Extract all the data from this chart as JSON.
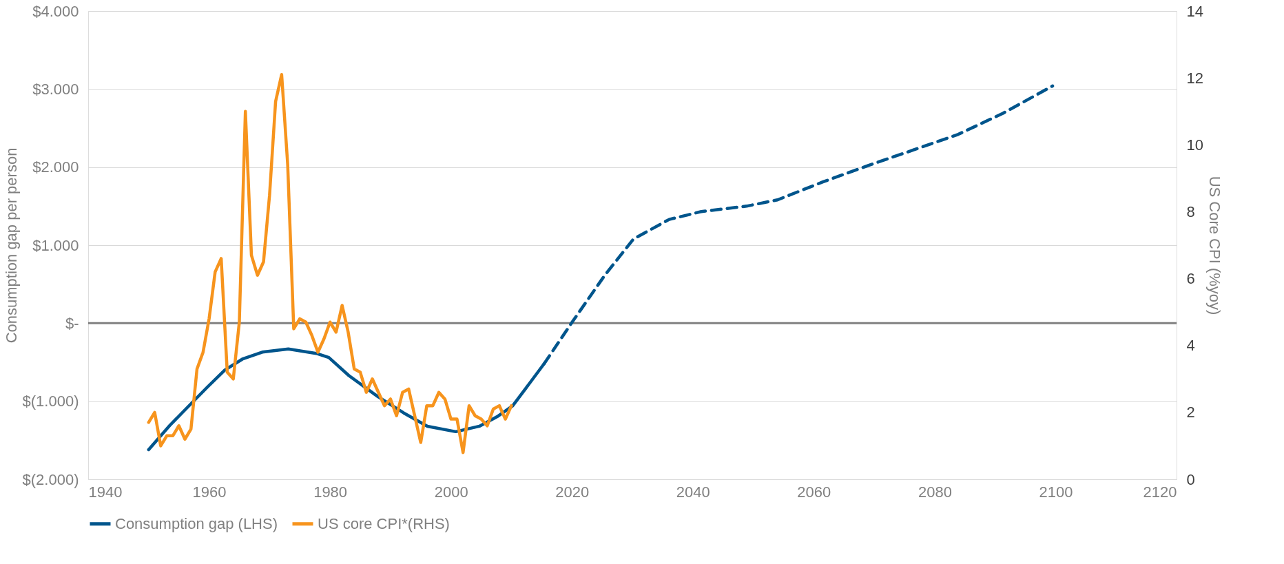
{
  "chart_data": {
    "type": "line",
    "ylabel": "Consumption gap per person",
    "y2label": "US Core CPI (%yoy)",
    "xlim": [
      1940,
      2120
    ],
    "xticks": [
      1940,
      1960,
      1980,
      2000,
      2020,
      2040,
      2060,
      2080,
      2100,
      2120
    ],
    "ylim": [
      -2000,
      4000
    ],
    "yticks": [
      {
        "value": -2000,
        "label": "$(2.000)"
      },
      {
        "value": -1000,
        "label": "$(1.000)"
      },
      {
        "value": 0,
        "label": "$-"
      },
      {
        "value": 1000,
        "label": "$1.000"
      },
      {
        "value": 2000,
        "label": "$2.000"
      },
      {
        "value": 3000,
        "label": "$3.000"
      },
      {
        "value": 4000,
        "label": "$4.000"
      }
    ],
    "y2lim": [
      0,
      14
    ],
    "y2ticks": [
      0,
      2,
      4,
      6,
      8,
      10,
      12,
      14
    ],
    "grid": "y",
    "legend": "bottom",
    "ref_lines": [
      {
        "axis": "y",
        "value": 0,
        "color": "#808080"
      }
    ],
    "series": [
      {
        "name": "Consumption gap (LHS)",
        "color": "#00558c",
        "line_style": "solid",
        "x": [
          1950,
          1953.5,
          1956.9,
          1959.7,
          1962.6,
          1965.5,
          1968.8,
          1973.1,
          1977.9,
          1979.8,
          1983.1,
          1987.9,
          1992.2,
          1996.1,
          2000.8,
          2004.7,
          2007.8,
          2010.2,
          2012.9,
          2015.4
        ],
        "values": [
          -1620,
          -1310,
          -1040,
          -820,
          -600,
          -460,
          -370,
          -330,
          -390,
          -440,
          -670,
          -940,
          -1150,
          -1320,
          -1390,
          -1320,
          -1190,
          -1060,
          -780,
          -520
        ]
      },
      {
        "color": "#00558c",
        "line_style": "dashed",
        "x": [
          2015.4,
          2020.1,
          2025.4,
          2030.2,
          2036.1,
          2041.4,
          2048.9,
          2054,
          2061.5,
          2069,
          2076.5,
          2083.9,
          2091.3,
          2099.5
        ],
        "values": [
          -520,
          20,
          610,
          1080,
          1330,
          1430,
          1500,
          1580,
          1810,
          2020,
          2220,
          2420,
          2690,
          3040
        ]
      },
      {
        "name": "US core CPI*(RHS)",
        "color": "#f7941d",
        "line_style": "solid",
        "axis": "y2",
        "x": [
          1950,
          1951,
          1952,
          1953,
          1954,
          1955,
          1956,
          1957,
          1958,
          1959,
          1960,
          1961,
          1962,
          1963,
          1964,
          1965,
          1966,
          1967,
          1968,
          1969,
          1970,
          1971,
          1972,
          1973,
          1974,
          1975,
          1976,
          1977,
          1978,
          1979,
          1980,
          1981,
          1982,
          1983,
          1984,
          1985,
          1986,
          1987,
          1988,
          1989,
          1990,
          1991,
          1992,
          1993,
          1995,
          1996,
          1997,
          1998,
          1999,
          2000,
          2001,
          2002,
          2003,
          2004,
          2005,
          2006,
          2007,
          2008,
          2009,
          2010
        ],
        "values": [
          1.7,
          2.0,
          1.0,
          1.3,
          1.3,
          1.6,
          1.2,
          1.5,
          3.3,
          3.8,
          4.8,
          6.2,
          6.6,
          3.2,
          3.0,
          4.7,
          11.0,
          6.7,
          6.1,
          6.5,
          8.5,
          11.3,
          12.1,
          9.4,
          4.5,
          4.8,
          4.7,
          4.3,
          3.8,
          4.2,
          4.7,
          4.4,
          5.2,
          4.4,
          3.3,
          3.2,
          2.6,
          3.0,
          2.6,
          2.2,
          2.4,
          1.9,
          2.6,
          2.7,
          1.1,
          2.2,
          2.2,
          2.6,
          2.4,
          1.8,
          1.8,
          0.8,
          2.2,
          1.9,
          1.8,
          1.6,
          2.1,
          2.2,
          1.8,
          2.2
        ]
      }
    ]
  }
}
